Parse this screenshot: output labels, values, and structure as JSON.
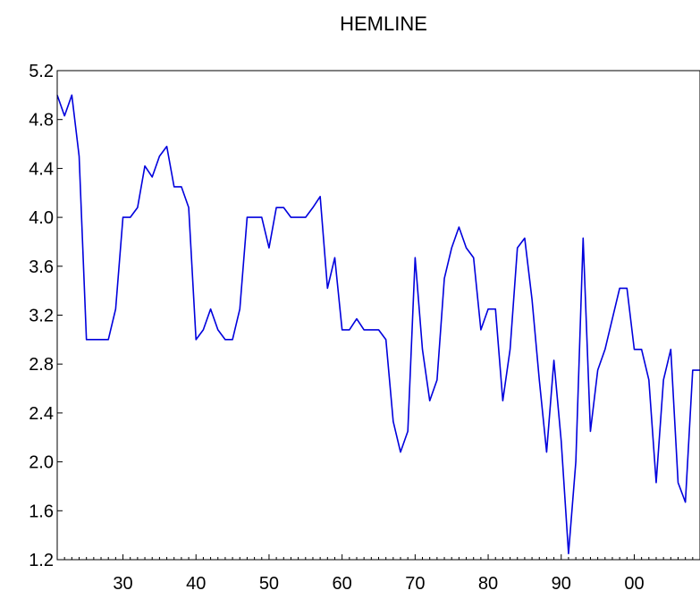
{
  "chart_data": {
    "type": "line",
    "title": "HEMLINE",
    "xlabel": "",
    "ylabel": "",
    "xlim": [
      1921,
      2009
    ],
    "ylim": [
      1.2,
      5.2
    ],
    "y_ticks": [
      "1.2",
      "1.6",
      "2.0",
      "2.4",
      "2.8",
      "3.2",
      "3.6",
      "4.0",
      "4.4",
      "4.8",
      "5.2"
    ],
    "x_ticks": [
      {
        "value": 1930,
        "label": "30"
      },
      {
        "value": 1940,
        "label": "40"
      },
      {
        "value": 1950,
        "label": "50"
      },
      {
        "value": 1960,
        "label": "60"
      },
      {
        "value": 1970,
        "label": "70"
      },
      {
        "value": 1980,
        "label": "80"
      },
      {
        "value": 1990,
        "label": "90"
      },
      {
        "value": 2000,
        "label": "00"
      }
    ],
    "grid": false,
    "line_color": "#0000dd",
    "series": [
      {
        "x": [
          1921,
          1922,
          1923,
          1924,
          1925,
          1926,
          1927,
          1928,
          1929,
          1930,
          1931,
          1932,
          1933,
          1934,
          1935,
          1936,
          1937,
          1938,
          1939,
          1940,
          1941,
          1942,
          1943,
          1944,
          1945,
          1946,
          1947,
          1948,
          1949,
          1950,
          1951,
          1952,
          1953,
          1954,
          1955,
          1956,
          1957,
          1958,
          1959,
          1960,
          1961,
          1962,
          1963,
          1964,
          1965,
          1966,
          1967,
          1968,
          1969,
          1970,
          1971,
          1972,
          1973,
          1974,
          1975,
          1976,
          1977,
          1978,
          1979,
          1980,
          1981,
          1982,
          1983,
          1984,
          1985,
          1986,
          1987,
          1988,
          1989,
          1990,
          1991,
          1992,
          1993,
          1994,
          1995,
          1996,
          1997,
          1998,
          1999,
          2000,
          2001,
          2002,
          2003,
          2004,
          2005,
          2006,
          2007,
          2008,
          2009
        ],
        "values": [
          5.0,
          4.83,
          5.0,
          4.5,
          3.0,
          3.0,
          3.0,
          3.0,
          3.25,
          4.0,
          4.0,
          4.08,
          4.42,
          4.33,
          4.5,
          4.58,
          4.25,
          4.25,
          4.08,
          3.0,
          3.08,
          3.25,
          3.08,
          3.0,
          3.0,
          3.25,
          4.0,
          4.0,
          4.0,
          3.75,
          4.08,
          4.08,
          4.0,
          4.0,
          4.0,
          4.08,
          4.17,
          3.42,
          3.67,
          3.08,
          3.08,
          3.17,
          3.08,
          3.08,
          3.08,
          3.0,
          2.33,
          2.08,
          2.25,
          3.67,
          2.92,
          2.5,
          2.67,
          3.5,
          3.75,
          3.92,
          3.75,
          3.67,
          3.08,
          3.25,
          3.25,
          2.5,
          2.92,
          3.75,
          3.83,
          3.33,
          2.67,
          2.08,
          2.83,
          2.17,
          1.25,
          2.0,
          3.83,
          2.25,
          2.75,
          2.92,
          3.17,
          3.42,
          3.42,
          2.92,
          2.92,
          2.67,
          1.83,
          2.67,
          2.92,
          1.83,
          1.67,
          2.75,
          2.75
        ]
      }
    ]
  }
}
